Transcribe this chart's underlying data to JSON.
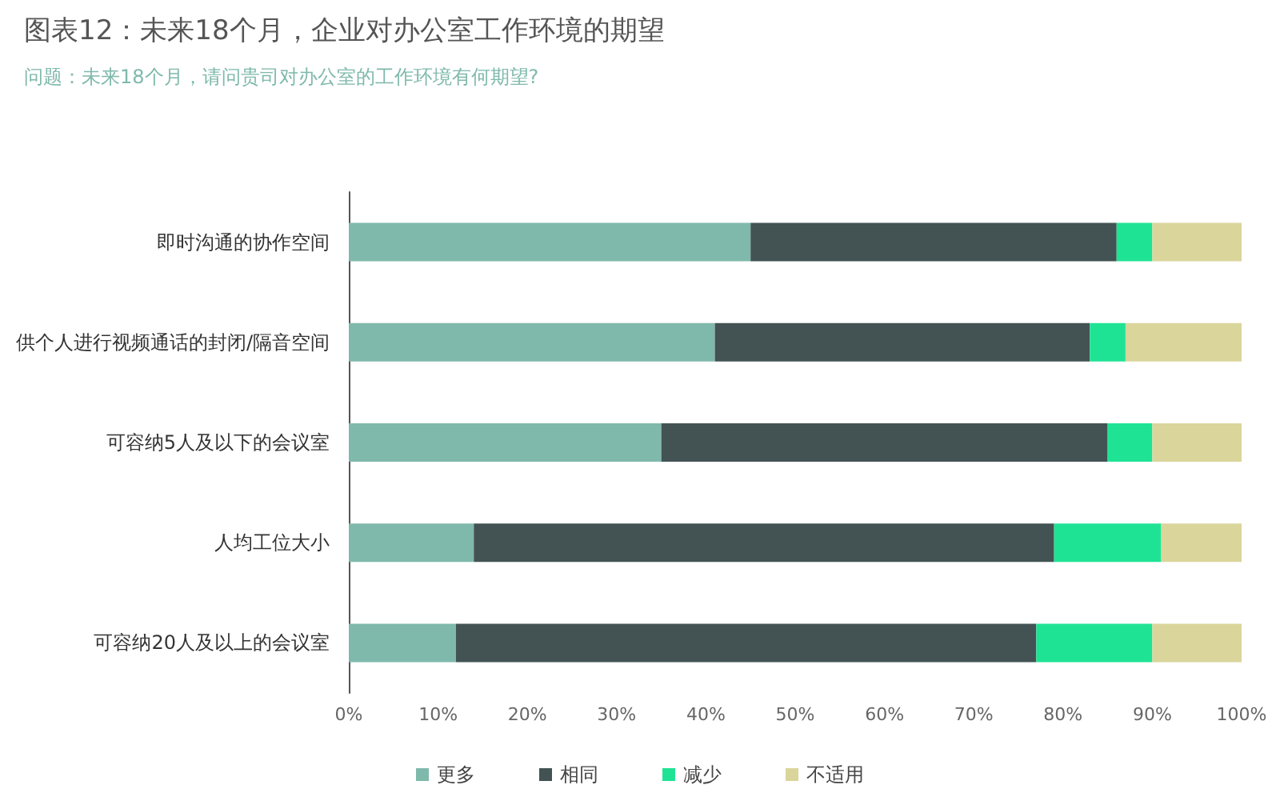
{
  "chart_data": {
    "type": "bar",
    "orientation": "horizontal",
    "stacked": true,
    "title": "图表12：未来18个月，企业对办公室工作环境的期望",
    "subtitle": "问题：未来18个月，请问贵司对办公室的工作环境有何期望?",
    "categories": [
      "即时沟通的协作空间",
      "供个人进行视频通话的封闭/隔音空间",
      "可容纳5人及以下的会议室",
      "人均工位大小",
      "可容纳20人及以上的会议室"
    ],
    "series": [
      {
        "name": "更多",
        "color": "#7fb9ab",
        "values": [
          45,
          41,
          35,
          14,
          12
        ]
      },
      {
        "name": "相同",
        "color": "#435354",
        "values": [
          41,
          42,
          50,
          65,
          65
        ]
      },
      {
        "name": "减少",
        "color": "#1fe394",
        "values": [
          4,
          4,
          5,
          12,
          13
        ]
      },
      {
        "name": "不适用",
        "color": "#dad59b",
        "values": [
          10,
          13,
          10,
          9,
          10
        ]
      }
    ],
    "xlim": [
      0,
      100
    ],
    "xticks": [
      {
        "value": 0,
        "label": "0%"
      },
      {
        "value": 10,
        "label": "10%"
      },
      {
        "value": 20,
        "label": "20%"
      },
      {
        "value": 30,
        "label": "30%"
      },
      {
        "value": 40,
        "label": "40%"
      },
      {
        "value": 50,
        "label": "50%"
      },
      {
        "value": 60,
        "label": "60%"
      },
      {
        "value": 70,
        "label": "70%"
      },
      {
        "value": 80,
        "label": "80%"
      },
      {
        "value": 90,
        "label": "90%"
      },
      {
        "value": 100,
        "label": "100%"
      }
    ],
    "grid": false,
    "legend": "bottom"
  }
}
